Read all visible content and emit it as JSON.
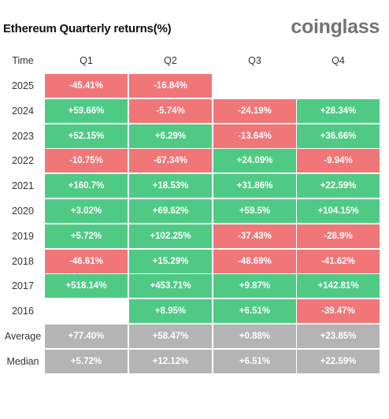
{
  "header": {
    "title": "Ethereum Quarterly returns(%)",
    "brand": "coinglass"
  },
  "chart_data": {
    "type": "table",
    "title": "Ethereum Quarterly returns(%)",
    "row_header": "Time",
    "columns": [
      "Q1",
      "Q2",
      "Q3",
      "Q4"
    ],
    "colors": {
      "positive": "#4fca85",
      "negative": "#f07678",
      "summary": "#b4b4b4",
      "empty": "#ffffff"
    },
    "rows": [
      {
        "label": "2025",
        "values": [
          "-45.41%",
          "-16.84%",
          "",
          ""
        ]
      },
      {
        "label": "2024",
        "values": [
          "+59.66%",
          "-5.74%",
          "-24.19%",
          "+28.34%"
        ]
      },
      {
        "label": "2023",
        "values": [
          "+52.15%",
          "+6.29%",
          "-13.64%",
          "+36.66%"
        ]
      },
      {
        "label": "2022",
        "values": [
          "-10.75%",
          "-67.34%",
          "+24.09%",
          "-9.94%"
        ]
      },
      {
        "label": "2021",
        "values": [
          "+160.7%",
          "+18.53%",
          "+31.86%",
          "+22.59%"
        ]
      },
      {
        "label": "2020",
        "values": [
          "+3.02%",
          "+69.62%",
          "+59.5%",
          "+104.15%"
        ]
      },
      {
        "label": "2019",
        "values": [
          "+5.72%",
          "+102.25%",
          "-37.43%",
          "-28.9%"
        ]
      },
      {
        "label": "2018",
        "values": [
          "-46.61%",
          "+15.29%",
          "-48.69%",
          "-41.62%"
        ]
      },
      {
        "label": "2017",
        "values": [
          "+518.14%",
          "+453.71%",
          "+9.87%",
          "+142.81%"
        ]
      },
      {
        "label": "2016",
        "values": [
          "",
          "+8.95%",
          "+6.51%",
          "-39.47%"
        ]
      }
    ],
    "summary_rows": [
      {
        "label": "Average",
        "values": [
          "+77.40%",
          "+58.47%",
          "+0.88%",
          "+23.85%"
        ]
      },
      {
        "label": "Median",
        "values": [
          "+5.72%",
          "+12.12%",
          "+6.51%",
          "+22.59%"
        ]
      }
    ]
  }
}
